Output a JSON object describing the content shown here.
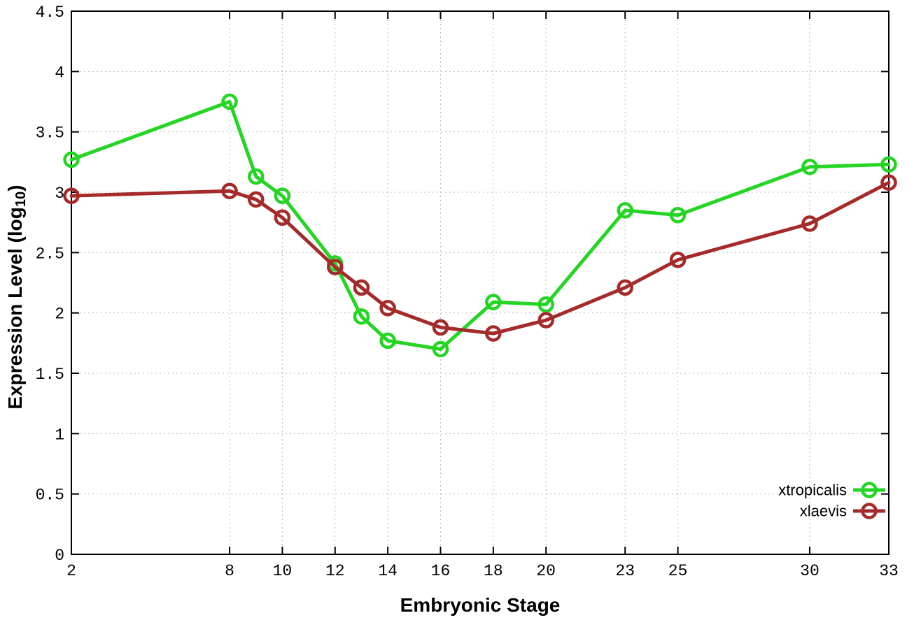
{
  "chart_data": {
    "type": "line",
    "title": "",
    "xlabel": "Embryonic Stage",
    "ylabel": "Expression Level (log10)",
    "ylabel_prefix": "Expression Level (log",
    "ylabel_subscript": "10",
    "ylabel_suffix": ")",
    "xlim": [
      2,
      33
    ],
    "ylim": [
      0,
      4.5
    ],
    "x_ticks": [
      2,
      8,
      10,
      12,
      14,
      16,
      18,
      20,
      23,
      25,
      30,
      33
    ],
    "x_tick_labels": [
      "2",
      "8",
      "10",
      "12",
      "14",
      "16",
      "18",
      "20",
      "23",
      "25",
      "30",
      "33"
    ],
    "y_ticks": [
      0,
      0.5,
      1,
      1.5,
      2,
      2.5,
      3,
      3.5,
      4,
      4.5
    ],
    "y_tick_labels": [
      "0",
      "0.5",
      "1",
      "1.5",
      "2",
      "2.5",
      "3",
      "3.5",
      "4",
      "4.5"
    ],
    "grid": true,
    "grid_color": "#b8b8b8",
    "frame_color": "#000000",
    "background_color": "#ffffff",
    "legend_position": "bottom-right",
    "x": [
      2,
      8,
      9,
      10,
      12,
      13,
      14,
      16,
      18,
      20,
      23,
      25,
      30,
      33
    ],
    "series": [
      {
        "name": "xtropicalis",
        "color": "#24d524",
        "marker": "open-circle",
        "values": [
          3.27,
          3.75,
          3.13,
          2.97,
          2.41,
          1.97,
          1.77,
          1.7,
          2.09,
          2.07,
          2.85,
          2.81,
          3.21,
          3.23
        ]
      },
      {
        "name": "xlaevis",
        "color": "#a52a2a",
        "marker": "open-circle",
        "values": [
          2.97,
          3.01,
          2.94,
          2.79,
          2.38,
          2.21,
          2.04,
          1.88,
          1.83,
          1.94,
          2.21,
          2.44,
          2.74,
          3.08
        ]
      }
    ]
  }
}
